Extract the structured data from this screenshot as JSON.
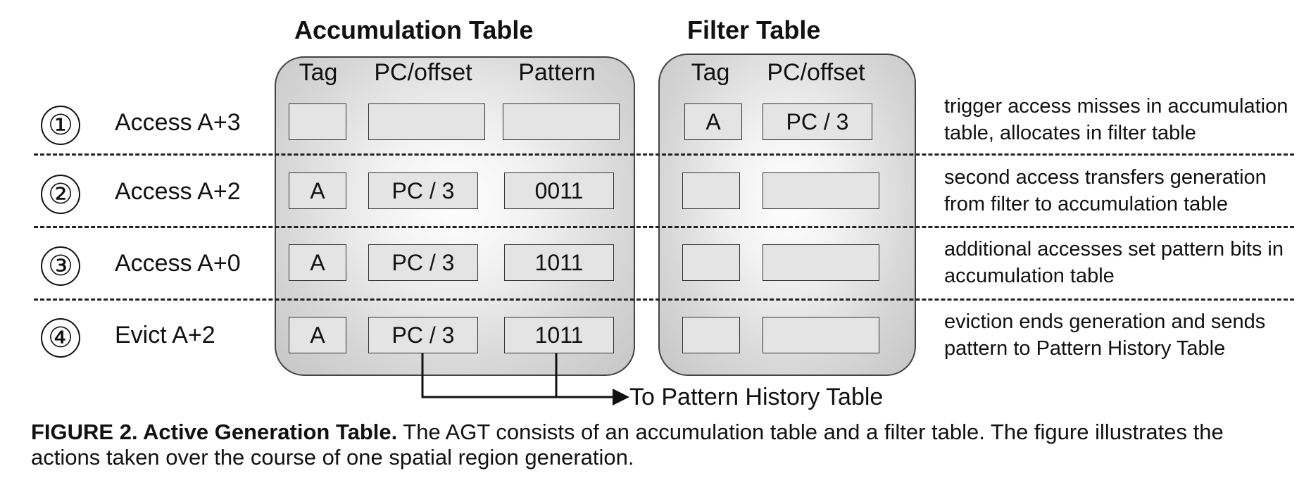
{
  "accumulation_table": {
    "title": "Accumulation Table",
    "columns": [
      "Tag",
      "PC/offset",
      "Pattern"
    ]
  },
  "filter_table": {
    "title": "Filter Table",
    "columns": [
      "Tag",
      "PC/offset"
    ]
  },
  "steps": [
    {
      "number": "①",
      "label": "Access A+3",
      "accumulation": [
        "",
        "",
        ""
      ],
      "filter": [
        "A",
        "PC / 3"
      ],
      "description": "trigger access misses in accumulation table, allocates in filter table"
    },
    {
      "number": "②",
      "label": "Access A+2",
      "accumulation": [
        "A",
        "PC / 3",
        "0011"
      ],
      "filter": [
        "",
        ""
      ],
      "description": "second access transfers generation from filter to accumulation table"
    },
    {
      "number": "③",
      "label": "Access A+0",
      "accumulation": [
        "A",
        "PC / 3",
        "1011"
      ],
      "filter": [
        "",
        ""
      ],
      "description": "additional accesses set pattern bits in accumulation table"
    },
    {
      "number": "④",
      "label": "Evict A+2",
      "accumulation": [
        "A",
        "PC / 3",
        "1011"
      ],
      "filter": [
        "",
        ""
      ],
      "description": "eviction ends generation and sends pattern to Pattern History Table"
    }
  ],
  "arrow_label": "To Pattern History Table",
  "caption": {
    "bold": "FIGURE 2. Active Generation Table.",
    "text": " The AGT consists of an accumulation table and a filter table. The figure illustrates the actions taken over the course of one spatial region generation."
  }
}
